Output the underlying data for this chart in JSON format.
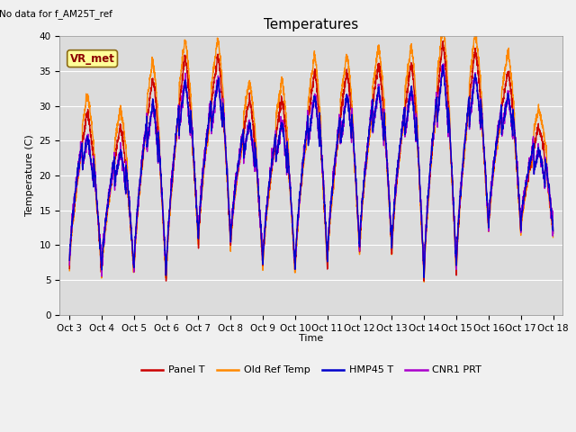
{
  "title": "Temperatures",
  "ylabel": "Temperature (C)",
  "xlabel": "Time",
  "ylim": [
    0,
    40
  ],
  "bg_color": "#dcdcdc",
  "fig_bg_color": "#f0f0f0",
  "no_data_text": "No data for f_AM25T_ref",
  "vr_met_text": "VR_met",
  "legend_entries": [
    "Panel T",
    "Old Ref Temp",
    "HMP45 T",
    "CNR1 PRT"
  ],
  "line_colors": [
    "#cc0000",
    "#ff8800",
    "#0000cc",
    "#aa00cc"
  ],
  "title_fontsize": 11,
  "label_fontsize": 8,
  "tick_fontsize": 7.5,
  "linewidth": 1.0
}
